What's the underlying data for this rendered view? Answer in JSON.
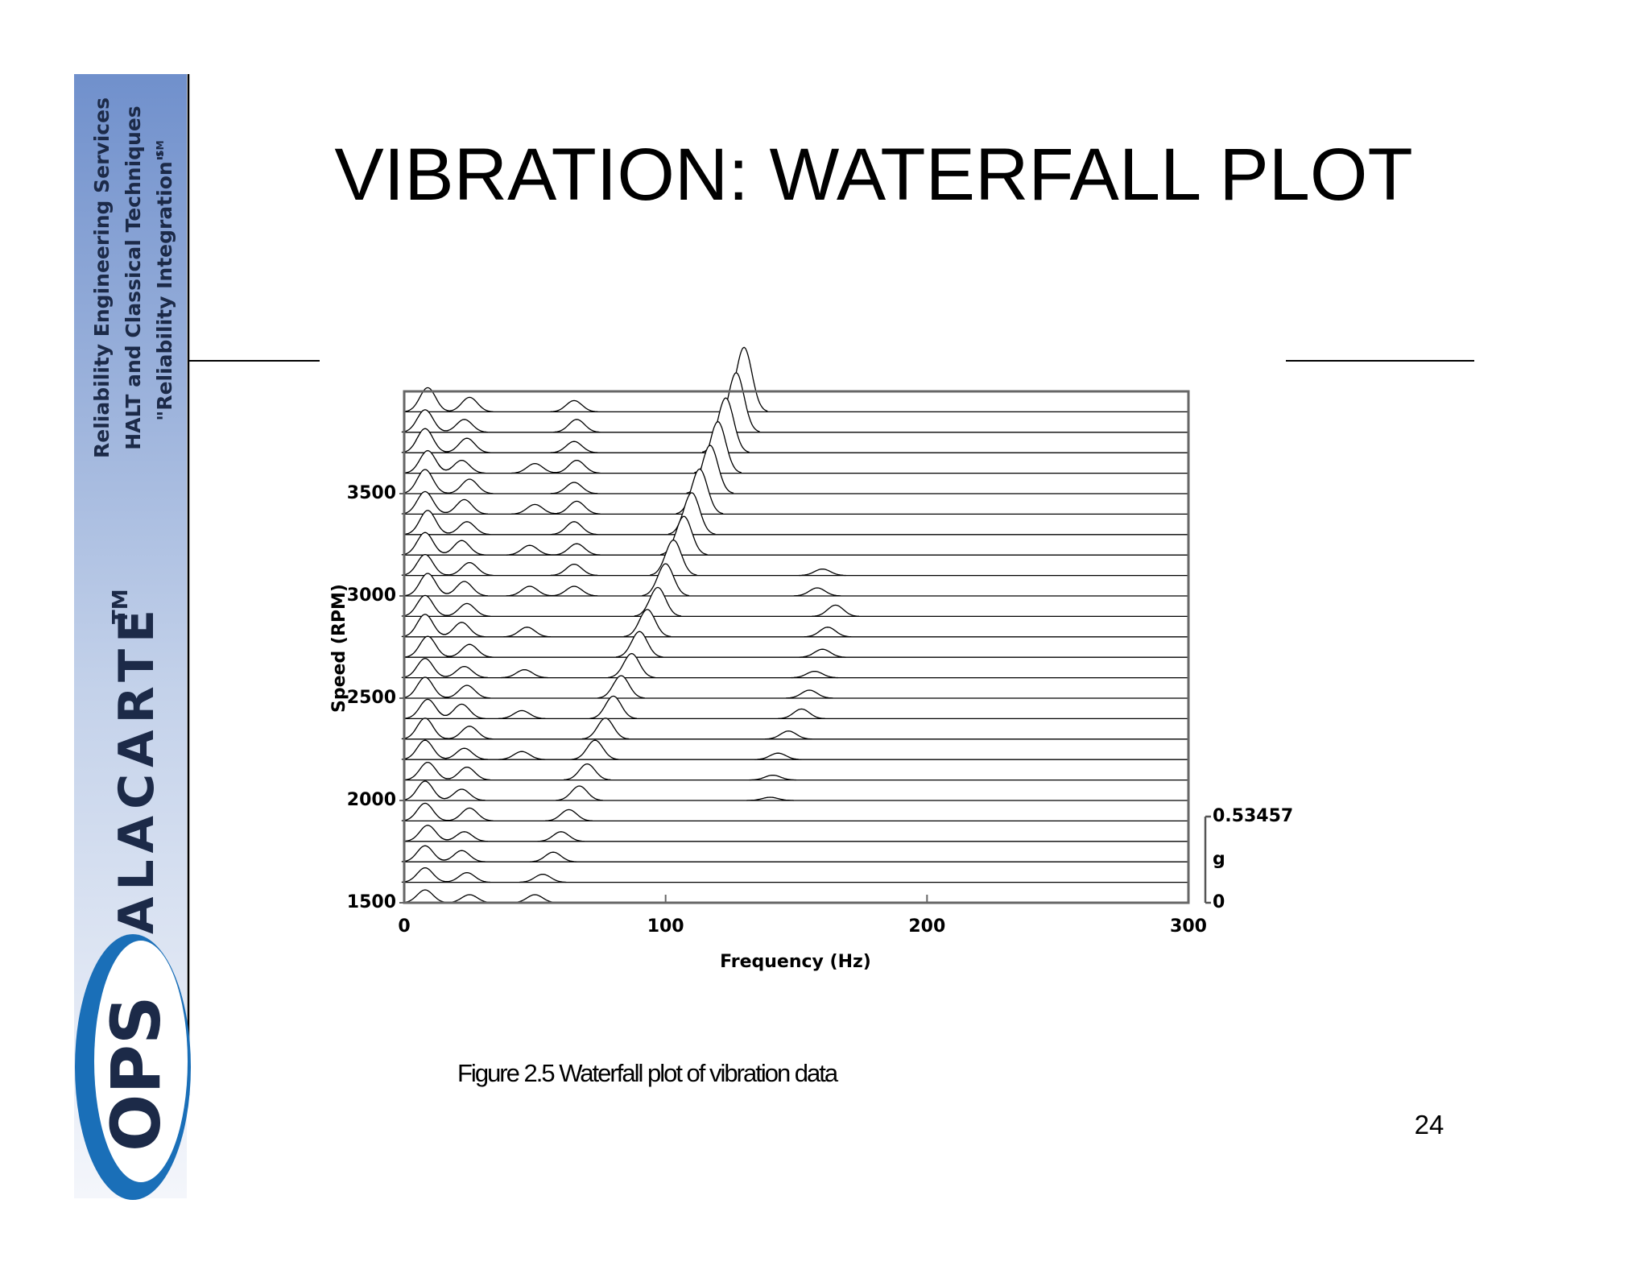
{
  "slide": {
    "title": "VIBRATION: WATERFALL PLOT",
    "caption": "Figure 2.5  Waterfall plot of vibration data",
    "page_number": "24",
    "sidebar": {
      "lines": [
        "Reliability Engineering Services",
        "HALT and Classical Techniques",
        "\"Reliability Integration\""
      ],
      "service_mark": "SM",
      "brand": "ALACARTE",
      "trademark": "TM",
      "logo": "OPS"
    }
  },
  "chart_data": {
    "type": "waterfall",
    "xlabel": "Frequency (Hz)",
    "ylabel": "Speed (RPM)",
    "zlabel": "g",
    "xlim": [
      0,
      300
    ],
    "xticks": [
      0,
      100,
      200,
      300
    ],
    "ylim": [
      1500,
      4000
    ],
    "yticks": [
      1500,
      2000,
      2500,
      3000,
      3500
    ],
    "zlim": [
      0,
      0.53457
    ],
    "zticks": [
      0,
      0.53457
    ],
    "color": "#000000",
    "traces": [
      {
        "speed": 1500,
        "peaks": [
          [
            8,
            0.08
          ],
          [
            25,
            0.05
          ],
          [
            50,
            0.05
          ]
        ]
      },
      {
        "speed": 1600,
        "peaks": [
          [
            8,
            0.09
          ],
          [
            24,
            0.06
          ],
          [
            53,
            0.05
          ]
        ]
      },
      {
        "speed": 1700,
        "peaks": [
          [
            8,
            0.1
          ],
          [
            22,
            0.07
          ],
          [
            57,
            0.06
          ]
        ]
      },
      {
        "speed": 1800,
        "peaks": [
          [
            9,
            0.1
          ],
          [
            23,
            0.06
          ],
          [
            60,
            0.06
          ]
        ]
      },
      {
        "speed": 1900,
        "peaks": [
          [
            8,
            0.11
          ],
          [
            25,
            0.08
          ],
          [
            63,
            0.07
          ]
        ]
      },
      {
        "speed": 2000,
        "peaks": [
          [
            8,
            0.12
          ],
          [
            22,
            0.07
          ],
          [
            67,
            0.09
          ],
          [
            140,
            0.02
          ]
        ]
      },
      {
        "speed": 2100,
        "peaks": [
          [
            9,
            0.11
          ],
          [
            24,
            0.08
          ],
          [
            70,
            0.1
          ],
          [
            141,
            0.03
          ]
        ]
      },
      {
        "speed": 2200,
        "peaks": [
          [
            8,
            0.12
          ],
          [
            23,
            0.07
          ],
          [
            45,
            0.05
          ],
          [
            73,
            0.12
          ],
          [
            143,
            0.04
          ]
        ]
      },
      {
        "speed": 2300,
        "peaks": [
          [
            8,
            0.13
          ],
          [
            25,
            0.08
          ],
          [
            77,
            0.13
          ],
          [
            147,
            0.05
          ]
        ]
      },
      {
        "speed": 2400,
        "peaks": [
          [
            9,
            0.12
          ],
          [
            22,
            0.09
          ],
          [
            45,
            0.05
          ],
          [
            80,
            0.14
          ],
          [
            152,
            0.06
          ]
        ]
      },
      {
        "speed": 2500,
        "peaks": [
          [
            8,
            0.13
          ],
          [
            24,
            0.08
          ],
          [
            83,
            0.14
          ],
          [
            155,
            0.05
          ]
        ]
      },
      {
        "speed": 2600,
        "peaks": [
          [
            8,
            0.12
          ],
          [
            23,
            0.07
          ],
          [
            46,
            0.05
          ],
          [
            87,
            0.15
          ],
          [
            157,
            0.04
          ]
        ]
      },
      {
        "speed": 2700,
        "peaks": [
          [
            9,
            0.13
          ],
          [
            25,
            0.08
          ],
          [
            90,
            0.16
          ],
          [
            160,
            0.05
          ]
        ]
      },
      {
        "speed": 2800,
        "peaks": [
          [
            8,
            0.14
          ],
          [
            22,
            0.09
          ],
          [
            47,
            0.06
          ],
          [
            93,
            0.17
          ],
          [
            162,
            0.06
          ]
        ]
      },
      {
        "speed": 2900,
        "peaks": [
          [
            8,
            0.13
          ],
          [
            24,
            0.08
          ],
          [
            97,
            0.18
          ],
          [
            165,
            0.07
          ]
        ]
      },
      {
        "speed": 3000,
        "peaks": [
          [
            9,
            0.14
          ],
          [
            23,
            0.09
          ],
          [
            48,
            0.06
          ],
          [
            65,
            0.06
          ],
          [
            100,
            0.2
          ],
          [
            158,
            0.05
          ]
        ]
      },
      {
        "speed": 3100,
        "peaks": [
          [
            8,
            0.13
          ],
          [
            25,
            0.08
          ],
          [
            65,
            0.07
          ],
          [
            103,
            0.22
          ],
          [
            160,
            0.04
          ]
        ]
      },
      {
        "speed": 3200,
        "peaks": [
          [
            8,
            0.14
          ],
          [
            22,
            0.09
          ],
          [
            48,
            0.06
          ],
          [
            66,
            0.07
          ],
          [
            107,
            0.24
          ]
        ]
      },
      {
        "speed": 3300,
        "peaks": [
          [
            9,
            0.15
          ],
          [
            24,
            0.08
          ],
          [
            65,
            0.08
          ],
          [
            110,
            0.26
          ]
        ]
      },
      {
        "speed": 3400,
        "peaks": [
          [
            8,
            0.14
          ],
          [
            23,
            0.09
          ],
          [
            50,
            0.06
          ],
          [
            66,
            0.08
          ],
          [
            113,
            0.28
          ]
        ]
      },
      {
        "speed": 3500,
        "peaks": [
          [
            8,
            0.15
          ],
          [
            25,
            0.09
          ],
          [
            65,
            0.07
          ],
          [
            117,
            0.3
          ]
        ]
      },
      {
        "speed": 3600,
        "peaks": [
          [
            9,
            0.14
          ],
          [
            22,
            0.08
          ],
          [
            50,
            0.06
          ],
          [
            66,
            0.08
          ],
          [
            120,
            0.32
          ]
        ]
      },
      {
        "speed": 3700,
        "peaks": [
          [
            8,
            0.15
          ],
          [
            24,
            0.09
          ],
          [
            65,
            0.07
          ],
          [
            123,
            0.34
          ]
        ]
      },
      {
        "speed": 3800,
        "peaks": [
          [
            8,
            0.14
          ],
          [
            23,
            0.08
          ],
          [
            66,
            0.08
          ],
          [
            127,
            0.37
          ]
        ]
      },
      {
        "speed": 3900,
        "peaks": [
          [
            9,
            0.15
          ],
          [
            25,
            0.09
          ],
          [
            65,
            0.07
          ],
          [
            130,
            0.4
          ]
        ]
      }
    ]
  }
}
